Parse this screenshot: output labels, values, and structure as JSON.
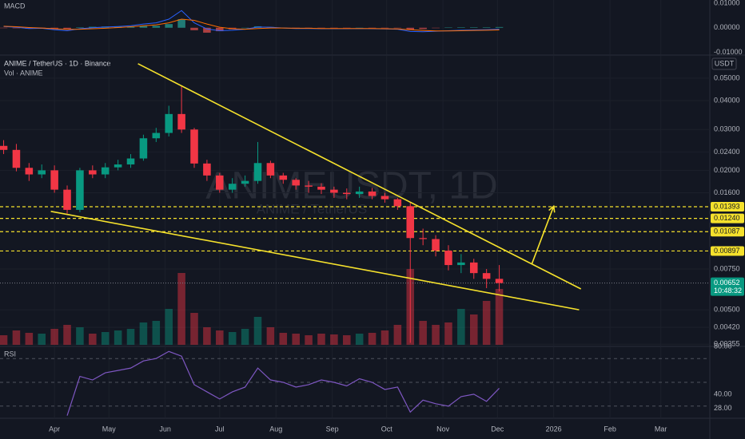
{
  "chart_data": [
    {
      "type": "macd",
      "title": "MACD",
      "macd": [
        0.0005,
        0.0002,
        -0.0003,
        -0.0002,
        -0.0008,
        -0.0012,
        -0.0004,
        0.0,
        0.0003,
        0.0005,
        0.0008,
        0.0015,
        0.002,
        0.0035,
        0.007,
        0.002,
        -0.0005,
        -0.0012,
        -0.001,
        -0.0006,
        0.0003,
        0.0002,
        -0.0001,
        -0.0003,
        -0.0003,
        -0.0004,
        -0.0004,
        -0.0004,
        -0.0003,
        -0.0004,
        -0.0005,
        -0.0006,
        -0.0015,
        -0.0016,
        -0.0014,
        -0.0012,
        -0.001,
        -0.0009,
        -0.0008,
        -0.0006
      ],
      "signal": [
        0.0006,
        0.0004,
        0.0001,
        -0.0001,
        -0.0004,
        -0.0007,
        -0.0006,
        -0.0004,
        -0.0002,
        0.0001,
        0.0004,
        0.0008,
        0.0012,
        0.002,
        0.0035,
        0.003,
        0.0015,
        0.0002,
        -0.0004,
        -0.0006,
        -0.0003,
        -0.0001,
        -0.0001,
        -0.0002,
        -0.0002,
        -0.0003,
        -0.0003,
        -0.0003,
        -0.0003,
        -0.0003,
        -0.0004,
        -0.0005,
        -0.0008,
        -0.0011,
        -0.0013,
        -0.0013,
        -0.0012,
        -0.0011,
        -0.001,
        -0.0009
      ],
      "histogram": [
        -0.0001,
        -0.0002,
        -0.0004,
        -0.0001,
        -0.0004,
        -0.0005,
        0.0002,
        0.0004,
        0.0005,
        0.0004,
        0.0004,
        0.0007,
        0.0008,
        0.0015,
        0.0035,
        -0.001,
        -0.002,
        -0.0014,
        -0.0006,
        0.0,
        0.0006,
        0.0003,
        0.0,
        -0.0001,
        -0.0001,
        -0.0001,
        -0.0001,
        -0.0001,
        0.0,
        -0.0001,
        -0.0001,
        -0.0001,
        -0.0007,
        -0.0005,
        -0.0001,
        0.0001,
        0.0002,
        0.0002,
        0.0002,
        0.0003
      ],
      "macd_color": "#2962ff",
      "signal_color": "#ff6d00",
      "up_color": "#26a69a",
      "down_color": "#ef5350",
      "ylim": [
        -0.0108,
        0.0113
      ],
      "yticks": [
        {
          "value": 0.01,
          "label": "0.01000"
        },
        {
          "value": 0,
          "label": "0.00000"
        },
        {
          "value": -0.01,
          "label": "-0.01000"
        }
      ]
    },
    {
      "type": "candlestick",
      "title": "ANIME / TetherUS · 1D · Binance",
      "subtitle": "Vol · ANIME",
      "watermark": "ANIMEUSDT, 1D",
      "watermark_subtitle": "ANIME / TetherUS",
      "currency": "USDT",
      "x": [
        -28,
        -21,
        -14,
        -7,
        0,
        7,
        14,
        21,
        28,
        35,
        42,
        49,
        56,
        63,
        70,
        77,
        84,
        91,
        98,
        105,
        112,
        119,
        126,
        133,
        140,
        147,
        154,
        161,
        168,
        175,
        182,
        189,
        196,
        203,
        210,
        217,
        224,
        231,
        238,
        245
      ],
      "open": [
        0.0255,
        0.0245,
        0.0205,
        0.0192,
        0.02,
        0.0165,
        0.0135,
        0.02,
        0.0192,
        0.0206,
        0.0212,
        0.0225,
        0.0275,
        0.029,
        0.035,
        0.03,
        0.0214,
        0.019,
        0.0165,
        0.0175,
        0.018,
        0.0215,
        0.019,
        0.0182,
        0.0172,
        0.017,
        0.0165,
        0.016,
        0.0158,
        0.0162,
        0.0155,
        0.015,
        0.014,
        0.0102,
        0.0101,
        0.009,
        0.0078,
        0.008,
        0.0072,
        0.0068
      ],
      "high": [
        0.027,
        0.026,
        0.0215,
        0.0212,
        0.021,
        0.0172,
        0.0205,
        0.021,
        0.0215,
        0.0222,
        0.0235,
        0.0285,
        0.0305,
        0.038,
        0.0462,
        0.0305,
        0.0222,
        0.0195,
        0.0185,
        0.019,
        0.0265,
        0.022,
        0.0195,
        0.0185,
        0.018,
        0.0176,
        0.017,
        0.0167,
        0.017,
        0.0168,
        0.016,
        0.0152,
        0.0145,
        0.0112,
        0.0105,
        0.0095,
        0.0087,
        0.0083,
        0.0075,
        0.0078
      ],
      "low": [
        0.0235,
        0.0198,
        0.018,
        0.0185,
        0.016,
        0.013,
        0.0132,
        0.0185,
        0.0185,
        0.02,
        0.0205,
        0.022,
        0.0265,
        0.028,
        0.029,
        0.0205,
        0.018,
        0.016,
        0.016,
        0.017,
        0.0175,
        0.0185,
        0.0175,
        0.0165,
        0.016,
        0.0158,
        0.0152,
        0.015,
        0.0152,
        0.015,
        0.0145,
        0.0135,
        0.0036,
        0.0095,
        0.0085,
        0.0074,
        0.0072,
        0.0068,
        0.0062,
        0.006
      ],
      "close": [
        0.0245,
        0.0205,
        0.0192,
        0.02,
        0.0165,
        0.0135,
        0.02,
        0.0192,
        0.0206,
        0.0212,
        0.0225,
        0.0275,
        0.029,
        0.035,
        0.03,
        0.0214,
        0.019,
        0.0165,
        0.0175,
        0.018,
        0.0215,
        0.019,
        0.0182,
        0.0172,
        0.017,
        0.0165,
        0.016,
        0.0158,
        0.0162,
        0.0155,
        0.015,
        0.014,
        0.0102,
        0.0101,
        0.009,
        0.0078,
        0.008,
        0.0072,
        0.0068,
        0.00652
      ],
      "volume": [
        12,
        18,
        15,
        14,
        20,
        25,
        22,
        14,
        16,
        18,
        20,
        28,
        30,
        45,
        90,
        40,
        22,
        18,
        16,
        20,
        35,
        22,
        15,
        14,
        12,
        14,
        13,
        12,
        14,
        15,
        18,
        25,
        95,
        30,
        25,
        28,
        45,
        38,
        55,
        70
      ],
      "volume_ylim": [
        0,
        100
      ],
      "up_color": "#089981",
      "down_color": "#f23645",
      "log_scale": true,
      "grid": true,
      "xlim": [
        -30,
        361
      ],
      "xticks": [
        {
          "value": 0,
          "label": "Apr"
        },
        {
          "value": 30,
          "label": "May"
        },
        {
          "value": 61,
          "label": "Jun"
        },
        {
          "value": 91,
          "label": "Jul"
        },
        {
          "value": 122,
          "label": "Aug"
        },
        {
          "value": 153,
          "label": "Sep"
        },
        {
          "value": 183,
          "label": "Oct"
        },
        {
          "value": 214,
          "label": "Nov"
        },
        {
          "value": 244,
          "label": "Dec"
        },
        {
          "value": 275,
          "label": "2026"
        },
        {
          "value": 306,
          "label": "Feb"
        },
        {
          "value": 334,
          "label": "Mar"
        }
      ],
      "ylim": [
        0.00353,
        0.0614
      ],
      "yticks": [
        {
          "value": 0.05,
          "label": "0.05000"
        },
        {
          "value": 0.04,
          "label": "0.04000"
        },
        {
          "value": 0.03,
          "label": "0.03000"
        },
        {
          "value": 0.024,
          "label": "0.02400"
        },
        {
          "value": 0.02,
          "label": "0.02000"
        },
        {
          "value": 0.016,
          "label": "0.01600"
        },
        {
          "value": 0.0075,
          "label": "0.00750"
        },
        {
          "value": 0.005,
          "label": "0.00500"
        },
        {
          "value": 0.0042,
          "label": "0.00420"
        },
        {
          "value": 0.00355,
          "label": "0.00355"
        }
      ],
      "levels": [
        {
          "value": 0.01393,
          "label": "0.01393"
        },
        {
          "value": 0.0124,
          "label": "0.01240"
        },
        {
          "value": 0.01087,
          "label": "0.01087"
        },
        {
          "value": 0.00897,
          "label": "0.00897"
        }
      ],
      "level_color": "#f5e12c",
      "last_price": {
        "value": 0.00652,
        "label": "0.00652"
      },
      "countdown": "10:48:32",
      "trendlines": [
        {
          "x": [
            46,
            290
          ],
          "y": [
            0.0577,
            0.00615
          ]
        },
        {
          "x": [
            -2,
            289
          ],
          "y": [
            0.0133,
            0.005
          ]
        }
      ],
      "arrow": {
        "x": [
          263,
          275
        ],
        "y": [
          0.0079,
          0.014
        ]
      }
    },
    {
      "type": "line",
      "title": "RSI",
      "color": "#7e57c2",
      "values": [
        null,
        null,
        null,
        null,
        null,
        22,
        55,
        52,
        58,
        60,
        62,
        68,
        70,
        76,
        72,
        48,
        42,
        36,
        42,
        46,
        62,
        52,
        50,
        46,
        48,
        52,
        50,
        47,
        53,
        50,
        44,
        46,
        25,
        35,
        32,
        30,
        38,
        40,
        34,
        45
      ],
      "bands": [
        70,
        50,
        30
      ],
      "ylim": [
        19.8,
        80.2
      ],
      "yticks": [
        {
          "value": 80,
          "label": "80.00"
        },
        {
          "value": 40,
          "label": "40.00"
        },
        {
          "value": 28,
          "label": "28.00"
        }
      ]
    }
  ]
}
